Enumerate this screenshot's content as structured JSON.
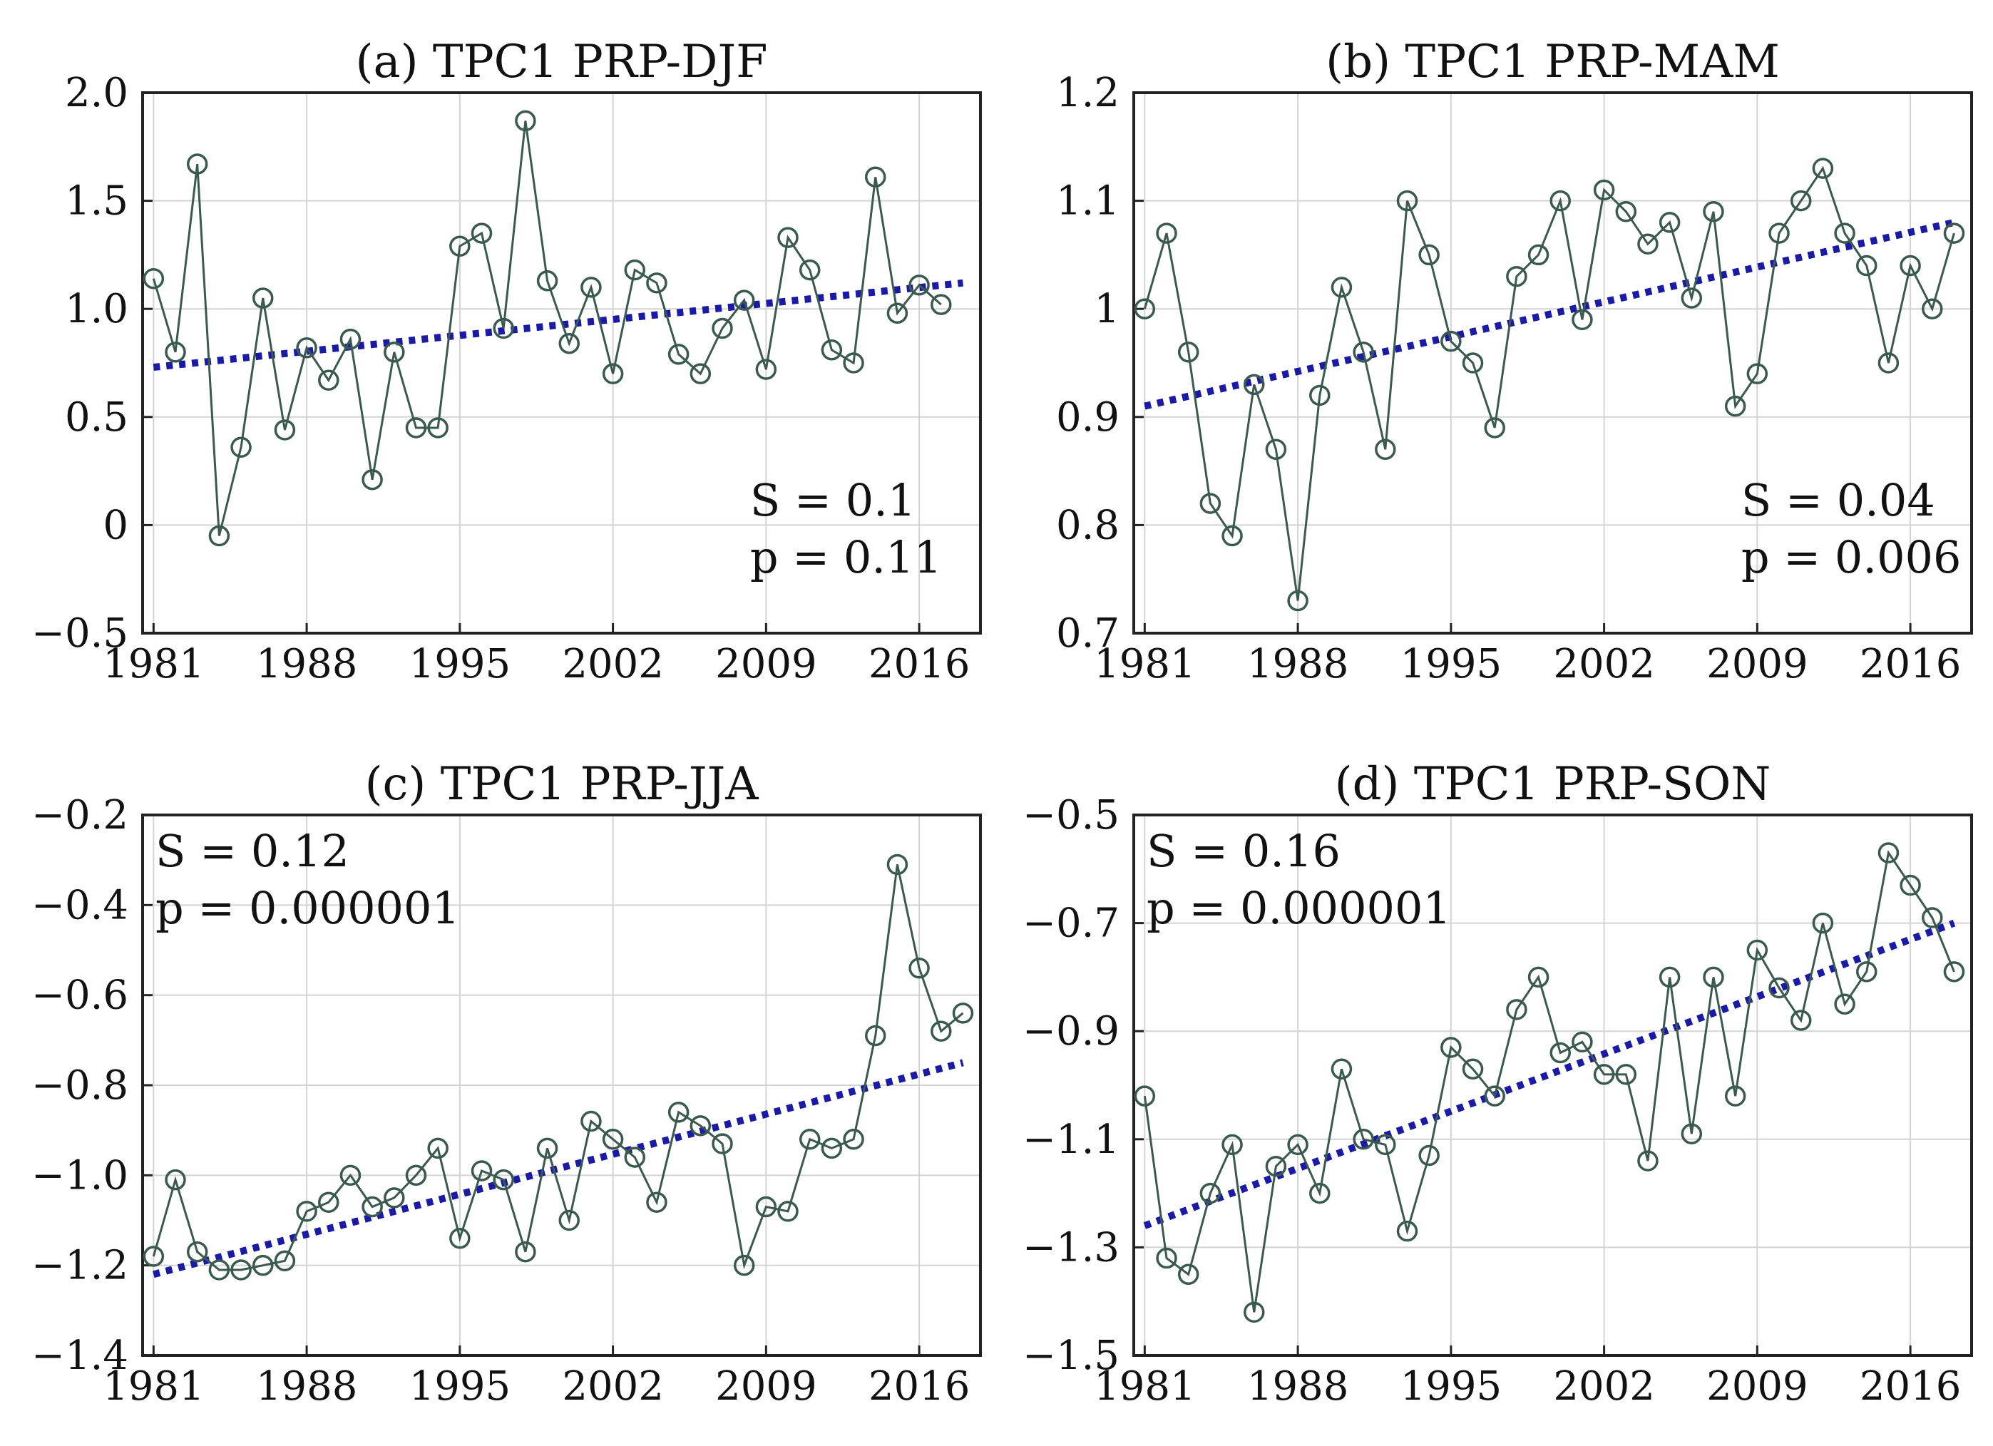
{
  "chart_data": [
    {
      "type": "line",
      "panel": "a",
      "title": "(a) TPC1 PRP-DJF",
      "x_ticks": [
        1981,
        1988,
        1995,
        2002,
        2009,
        2016
      ],
      "x_tick_labels": [
        "1981",
        "1988",
        "1995",
        "2002",
        "2009",
        "2016"
      ],
      "xlim": [
        1980.5,
        2018.8
      ],
      "ylim": [
        -0.5,
        2.0
      ],
      "y_ticks": [
        -0.5,
        0,
        0.5,
        1.0,
        1.5,
        2.0
      ],
      "y_tick_labels": [
        "−0.5",
        "0",
        "0.5",
        "1.0",
        "1.5",
        "2.0"
      ],
      "stat_lines": [
        "S = 0.1",
        "p = 0.11"
      ],
      "stat_position": "bottom-right",
      "x": [
        1981,
        1982,
        1983,
        1984,
        1985,
        1986,
        1987,
        1988,
        1989,
        1990,
        1991,
        1992,
        1993,
        1994,
        1995,
        1996,
        1997,
        1998,
        1999,
        2000,
        2001,
        2002,
        2003,
        2004,
        2005,
        2006,
        2007,
        2008,
        2009,
        2010,
        2011,
        2012,
        2013,
        2014,
        2015,
        2016,
        2017
      ],
      "values": [
        1.14,
        0.8,
        1.67,
        -0.05,
        0.36,
        1.05,
        0.44,
        0.82,
        0.67,
        0.86,
        0.21,
        0.8,
        0.45,
        0.45,
        1.29,
        1.35,
        0.91,
        1.87,
        1.13,
        0.84,
        1.1,
        0.7,
        1.18,
        1.12,
        0.79,
        0.7,
        0.91,
        1.04,
        0.72,
        1.33,
        1.18,
        0.81,
        0.75,
        1.61,
        0.98,
        1.11,
        1.02
      ],
      "trend": {
        "x": [
          1981,
          2018
        ],
        "y": [
          0.73,
          1.12
        ]
      }
    },
    {
      "type": "line",
      "panel": "b",
      "title": "(b) TPC1 PRP-MAM",
      "x_ticks": [
        1981,
        1988,
        1995,
        2002,
        2009,
        2016
      ],
      "x_tick_labels": [
        "1981",
        "1988",
        "1995",
        "2002",
        "2009",
        "2016"
      ],
      "xlim": [
        1980.5,
        2018.8
      ],
      "ylim": [
        0.7,
        1.2
      ],
      "y_ticks": [
        0.7,
        0.8,
        0.9,
        1.0,
        1.1,
        1.2
      ],
      "y_tick_labels": [
        "0.7",
        "0.8",
        "0.9",
        "1",
        "1.1",
        "1.2"
      ],
      "stat_lines": [
        "S = 0.04",
        "p = 0.006"
      ],
      "stat_position": "bottom-right",
      "x": [
        1981,
        1982,
        1983,
        1984,
        1985,
        1986,
        1987,
        1988,
        1989,
        1990,
        1991,
        1992,
        1993,
        1994,
        1995,
        1996,
        1997,
        1998,
        1999,
        2000,
        2001,
        2002,
        2003,
        2004,
        2005,
        2006,
        2007,
        2008,
        2009,
        2010,
        2011,
        2012,
        2013,
        2014,
        2015,
        2016,
        2017,
        2018
      ],
      "values": [
        1.0,
        1.07,
        0.96,
        0.82,
        0.79,
        0.93,
        0.87,
        0.73,
        0.92,
        1.02,
        0.96,
        0.87,
        1.1,
        1.05,
        0.97,
        0.95,
        0.89,
        1.03,
        1.05,
        1.1,
        0.99,
        1.11,
        1.09,
        1.06,
        1.08,
        1.01,
        1.09,
        0.91,
        0.94,
        1.07,
        1.1,
        1.13,
        1.07,
        1.04,
        0.95,
        1.04,
        1.0,
        1.07
      ],
      "trend": {
        "x": [
          1981,
          2018
        ],
        "y": [
          0.91,
          1.08
        ]
      }
    },
    {
      "type": "line",
      "panel": "c",
      "title": "(c) TPC1 PRP-JJA",
      "x_ticks": [
        1981,
        1988,
        1995,
        2002,
        2009,
        2016
      ],
      "x_tick_labels": [
        "1981",
        "1988",
        "1995",
        "2002",
        "2009",
        "2016"
      ],
      "xlim": [
        1980.5,
        2018.8
      ],
      "ylim": [
        -1.4,
        -0.2
      ],
      "y_ticks": [
        -1.4,
        -1.2,
        -1.0,
        -0.8,
        -0.6,
        -0.4,
        -0.2
      ],
      "y_tick_labels": [
        "−1.4",
        "−1.2",
        "−1.0",
        "−0.8",
        "−0.6",
        "−0.4",
        "−0.2"
      ],
      "stat_lines": [
        "S = 0.12",
        "p = 0.000001"
      ],
      "stat_position": "top-left",
      "x": [
        1981,
        1982,
        1983,
        1984,
        1985,
        1986,
        1987,
        1988,
        1989,
        1990,
        1991,
        1992,
        1993,
        1994,
        1995,
        1996,
        1997,
        1998,
        1999,
        2000,
        2001,
        2002,
        2003,
        2004,
        2005,
        2006,
        2007,
        2008,
        2009,
        2010,
        2011,
        2012,
        2013,
        2014,
        2015,
        2016,
        2017,
        2018
      ],
      "values": [
        -1.18,
        -1.01,
        -1.17,
        -1.21,
        -1.21,
        -1.2,
        -1.19,
        -1.08,
        -1.06,
        -1.0,
        -1.07,
        -1.05,
        -1.0,
        -0.94,
        -1.14,
        -0.99,
        -1.01,
        -1.17,
        -0.94,
        -1.1,
        -0.88,
        -0.92,
        -0.96,
        -1.06,
        -0.86,
        -0.89,
        -0.93,
        -1.2,
        -1.07,
        -1.08,
        -0.92,
        -0.94,
        -0.92,
        -0.69,
        -0.31,
        -0.54,
        -0.68,
        -0.64
      ],
      "trend": {
        "x": [
          1981,
          2018
        ],
        "y": [
          -1.22,
          -0.75
        ]
      }
    },
    {
      "type": "line",
      "panel": "d",
      "title": "(d) TPC1 PRP-SON",
      "x_ticks": [
        1981,
        1988,
        1995,
        2002,
        2009,
        2016
      ],
      "x_tick_labels": [
        "1981",
        "1988",
        "1995",
        "2002",
        "2009",
        "2016"
      ],
      "xlim": [
        1980.5,
        2018.8
      ],
      "ylim": [
        -1.5,
        -0.5
      ],
      "y_ticks": [
        -1.5,
        -1.3,
        -1.1,
        -0.9,
        -0.7,
        -0.5
      ],
      "y_tick_labels": [
        "−1.5",
        "−1.3",
        "−1.1",
        "−0.9",
        "−0.7",
        "−0.5"
      ],
      "stat_lines": [
        "S = 0.16",
        "p = 0.000001"
      ],
      "stat_position": "top-left",
      "x": [
        1981,
        1982,
        1983,
        1984,
        1985,
        1986,
        1987,
        1988,
        1989,
        1990,
        1991,
        1992,
        1993,
        1994,
        1995,
        1996,
        1997,
        1998,
        1999,
        2000,
        2001,
        2002,
        2003,
        2004,
        2005,
        2006,
        2007,
        2008,
        2009,
        2010,
        2011,
        2012,
        2013,
        2014,
        2015,
        2016,
        2017,
        2018
      ],
      "values": [
        -1.02,
        -1.32,
        -1.35,
        -1.2,
        -1.11,
        -1.42,
        -1.15,
        -1.11,
        -1.2,
        -0.97,
        -1.1,
        -1.11,
        -1.27,
        -1.13,
        -0.93,
        -0.97,
        -1.02,
        -0.86,
        -0.8,
        -0.94,
        -0.92,
        -0.98,
        -0.98,
        -1.14,
        -0.8,
        -1.09,
        -0.8,
        -1.02,
        -0.75,
        -0.82,
        -0.88,
        -0.7,
        -0.85,
        -0.79,
        -0.57,
        -0.63,
        -0.69,
        -0.79
      ],
      "trend": {
        "x": [
          1981,
          2018
        ],
        "y": [
          -1.26,
          -0.7
        ]
      }
    }
  ],
  "style": {
    "series_color": "#3b5a4f",
    "trend_color": "#1a1aa6"
  }
}
